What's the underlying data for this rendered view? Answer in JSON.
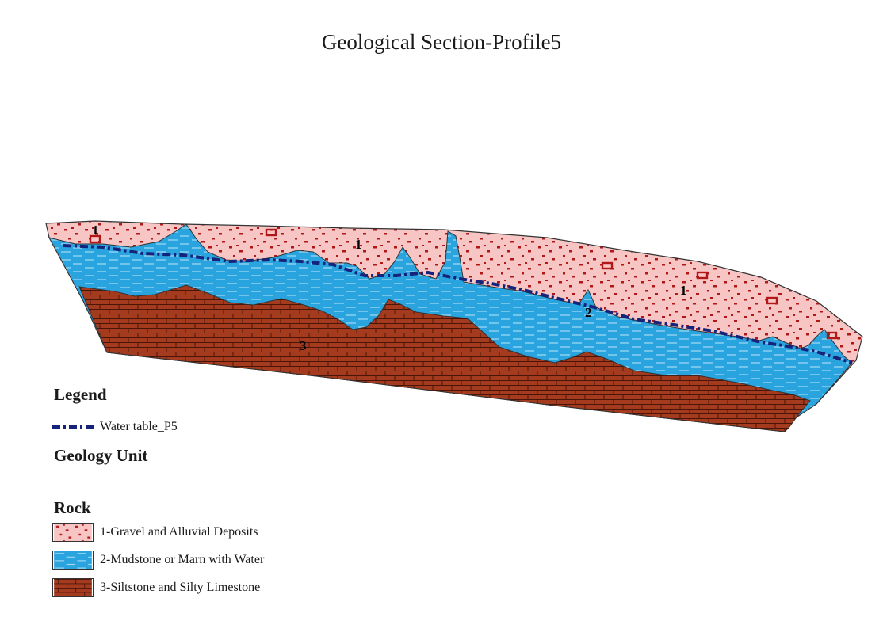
{
  "title": "Geological Section-Profile5",
  "section_labels": {
    "gravel_1": "1",
    "gravel_2": "1",
    "gravel_3": "1",
    "mudstone": "2",
    "siltstone": "3"
  },
  "legend": {
    "heading": "Legend",
    "water_table_label": "Water table_P5",
    "geology_unit_heading": "Geology Unit",
    "rock_heading": "Rock",
    "units": [
      {
        "label": "1-Gravel and Alluvial Deposits",
        "color": "#f8c5c5",
        "pattern": "gravel"
      },
      {
        "label": "2-Mudstone or Marn with Water",
        "color": "#2aa4df",
        "pattern": "dash"
      },
      {
        "label": "3-Siltstone and Silty Limestone",
        "color": "#a53b1e",
        "pattern": "brick"
      }
    ]
  },
  "colors": {
    "gravel_fill": "#f8c5c5",
    "gravel_dot": "#b01818",
    "mudstone_fill": "#2aa4df",
    "mudstone_line": "#bfe6f7",
    "siltstone_fill": "#a53b1e",
    "siltstone_line": "#4a1408",
    "water_table": "#15237a"
  }
}
